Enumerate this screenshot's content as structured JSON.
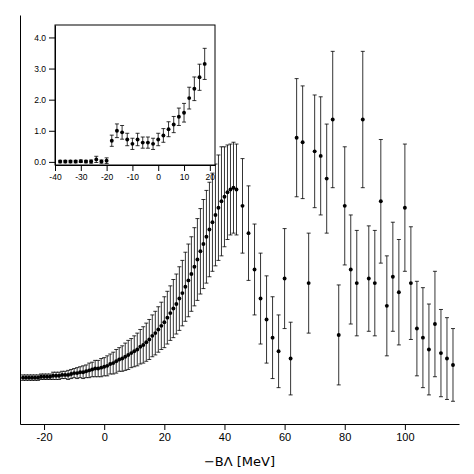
{
  "chart_data": [
    {
      "type": "scatter",
      "xlabel": "−BΛ [MeV]",
      "xlim": [
        -28,
        118
      ],
      "ylim": [
        -0.5,
        4.0
      ],
      "xticks": [
        -20,
        0,
        20,
        40,
        60,
        80,
        100
      ],
      "tick_labels": "x",
      "color": "black",
      "marker": "circle",
      "x": [
        -27,
        -26,
        -25,
        -24,
        -23,
        -22,
        -21,
        -20,
        -19,
        -18,
        -17,
        -16,
        -15,
        -14,
        -13,
        -12,
        -11,
        -10,
        -9,
        -8,
        -7,
        -6,
        -5,
        -4,
        -3,
        -2,
        -1,
        0,
        1,
        2,
        3,
        4,
        5,
        6,
        7,
        8,
        9,
        10,
        11,
        12,
        13,
        14,
        15,
        16,
        17,
        18,
        19,
        20,
        21,
        22,
        23,
        24,
        25,
        26,
        27,
        28,
        29,
        30,
        31,
        32,
        33,
        34,
        35,
        36,
        37,
        38,
        39,
        40,
        41,
        42,
        43,
        44,
        46,
        48,
        50,
        52,
        54,
        56,
        58,
        60,
        62,
        64,
        66,
        68,
        70,
        72,
        74,
        76,
        78,
        80,
        82,
        84,
        86,
        88,
        90,
        92,
        94,
        96,
        98,
        100,
        102,
        104,
        106,
        108,
        110,
        112,
        114,
        116
      ],
      "values": [
        0.01,
        0.01,
        0.01,
        0.01,
        0.01,
        0.01,
        0.02,
        0.02,
        0.02,
        0.02,
        0.03,
        0.03,
        0.03,
        0.04,
        0.04,
        0.04,
        0.05,
        0.06,
        0.06,
        0.07,
        0.07,
        0.08,
        0.09,
        0.1,
        0.11,
        0.11,
        0.12,
        0.13,
        0.14,
        0.16,
        0.17,
        0.19,
        0.21,
        0.22,
        0.24,
        0.26,
        0.28,
        0.3,
        0.32,
        0.35,
        0.37,
        0.4,
        0.43,
        0.47,
        0.5,
        0.54,
        0.58,
        0.62,
        0.67,
        0.72,
        0.77,
        0.82,
        0.88,
        0.94,
        1.01,
        1.08,
        1.15,
        1.23,
        1.31,
        1.4,
        1.48,
        1.56,
        1.64,
        1.72,
        1.8,
        1.88,
        1.95,
        2.0,
        2.05,
        2.08,
        2.1,
        2.08,
        1.9,
        1.6,
        1.2,
        0.88,
        0.65,
        0.45,
        0.3,
        1.1,
        0.22,
        2.65,
        2.6,
        1.05,
        2.5,
        2.45,
        2.2,
        2.85,
        0.48,
        1.9,
        1.2,
        1.05,
        2.85,
        1.1,
        1.05,
        1.95,
        0.8,
        1.12,
        0.95,
        1.88,
        1.05,
        0.55,
        0.45,
        0.32,
        0.6,
        0.28,
        0.22,
        0.15
      ],
      "yerr": [
        0.03,
        0.03,
        0.03,
        0.03,
        0.03,
        0.03,
        0.03,
        0.03,
        0.03,
        0.03,
        0.04,
        0.04,
        0.04,
        0.04,
        0.04,
        0.05,
        0.05,
        0.05,
        0.06,
        0.06,
        0.07,
        0.07,
        0.08,
        0.08,
        0.09,
        0.09,
        0.1,
        0.1,
        0.11,
        0.11,
        0.12,
        0.13,
        0.13,
        0.14,
        0.15,
        0.16,
        0.16,
        0.17,
        0.18,
        0.19,
        0.2,
        0.21,
        0.22,
        0.23,
        0.24,
        0.25,
        0.26,
        0.28,
        0.29,
        0.3,
        0.32,
        0.33,
        0.35,
        0.36,
        0.38,
        0.4,
        0.41,
        0.43,
        0.45,
        0.47,
        0.49,
        0.51,
        0.52,
        0.54,
        0.56,
        0.58,
        0.6,
        0.55,
        0.52,
        0.5,
        0.5,
        0.5,
        0.52,
        0.52,
        0.5,
        0.5,
        0.48,
        0.45,
        0.4,
        0.55,
        0.4,
        0.65,
        0.62,
        0.55,
        0.62,
        0.65,
        0.6,
        0.75,
        0.55,
        0.65,
        0.6,
        0.58,
        0.75,
        0.58,
        0.58,
        0.68,
        0.55,
        0.6,
        0.58,
        0.7,
        0.62,
        0.52,
        0.55,
        0.5,
        0.58,
        0.48,
        0.45,
        0.4
      ]
    },
    {
      "type": "scatter",
      "xlim": [
        -40,
        22
      ],
      "ylim": [
        -0.1,
        4.4
      ],
      "xticks": [
        -40,
        -30,
        -20,
        -10,
        0,
        10,
        20
      ],
      "yticks": [
        {
          "value": 0.0,
          "label": "0.0"
        },
        {
          "value": 1.0,
          "label": "1.0"
        },
        {
          "value": 2.0,
          "label": "2.0"
        },
        {
          "value": 3.0,
          "label": "3.0"
        },
        {
          "value": 4.0,
          "label": "4.0"
        }
      ],
      "color": "black",
      "marker": "circle",
      "x": [
        -38,
        -36,
        -34,
        -32,
        -30,
        -28,
        -26,
        -24,
        -22,
        -20,
        -18,
        -16,
        -14,
        -12,
        -10,
        -8,
        -6,
        -4,
        -2,
        0,
        2,
        4,
        6,
        8,
        10,
        12,
        14,
        16,
        18
      ],
      "values": [
        0.01,
        0.01,
        0.01,
        0.01,
        0.02,
        0.01,
        0.01,
        0.08,
        0.01,
        0.04,
        0.68,
        1.0,
        0.95,
        0.72,
        0.58,
        0.72,
        0.62,
        0.62,
        0.58,
        0.72,
        0.85,
        1.05,
        1.2,
        1.45,
        1.58,
        2.05,
        2.35,
        2.72,
        3.15
      ],
      "yerr": [
        0.04,
        0.04,
        0.04,
        0.04,
        0.04,
        0.04,
        0.05,
        0.1,
        0.05,
        0.09,
        0.18,
        0.22,
        0.22,
        0.2,
        0.18,
        0.2,
        0.18,
        0.18,
        0.18,
        0.2,
        0.22,
        0.24,
        0.26,
        0.28,
        0.3,
        0.35,
        0.38,
        0.42,
        0.5
      ]
    }
  ]
}
